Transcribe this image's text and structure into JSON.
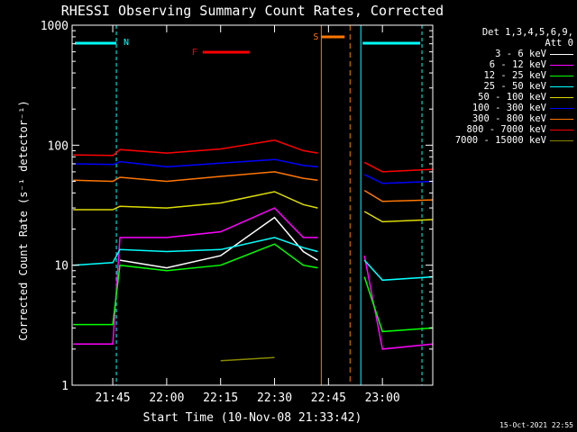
{
  "chart_data": {
    "type": "line",
    "title": "RHESSI Observing Summary Count Rates, Corrected",
    "xlabel": "Start Time (10-Nov-08 21:33:42)",
    "ylabel": "Corrected Count Rate (s⁻¹ detector⁻¹)",
    "y_scale": "log",
    "ylim": [
      1,
      1000
    ],
    "xlim": [
      "21:33:42",
      "23:14:00"
    ],
    "x_ticks": [
      "21:45",
      "22:00",
      "22:15",
      "22:30",
      "22:45",
      "23:00"
    ],
    "y_ticks": [
      "1",
      "10",
      "100",
      "1000"
    ],
    "grid": false,
    "x": [
      "21:34",
      "21:45",
      "21:47",
      "22:00",
      "22:15",
      "22:30",
      "22:38",
      "22:42",
      "22:43",
      "22:50",
      "22:55",
      "23:00",
      "23:14"
    ],
    "series": [
      {
        "name": "3 - 6 keV",
        "color": "#ffffff",
        "values": [
          null,
          null,
          11,
          9.5,
          12,
          25,
          13,
          11,
          null,
          null,
          9,
          null,
          null
        ]
      },
      {
        "name": "6 - 12 keV",
        "color": "#ff00ff",
        "values": [
          2.2,
          2.2,
          17,
          17,
          19,
          30,
          17,
          17,
          null,
          null,
          12,
          2,
          2.2
        ]
      },
      {
        "name": "12 - 25 keV",
        "color": "#00ff00",
        "values": [
          3.2,
          3.2,
          10,
          9,
          10,
          15,
          10,
          9.5,
          null,
          null,
          8,
          2.8,
          3
        ]
      },
      {
        "name": "25 - 50 keV",
        "color": "#00ffff",
        "values": [
          10,
          10.5,
          13.5,
          13,
          13.5,
          17,
          14,
          13,
          null,
          null,
          11,
          7.5,
          8
        ]
      },
      {
        "name": "50 - 100 keV",
        "color": "#dddd00",
        "values": [
          29,
          29,
          31,
          30,
          33,
          41,
          32,
          30,
          null,
          null,
          28,
          23,
          24
        ]
      },
      {
        "name": "100 - 300 keV",
        "color": "#0000ff",
        "values": [
          70,
          69,
          73,
          66,
          71,
          76,
          68,
          66,
          null,
          null,
          57,
          48,
          50
        ]
      },
      {
        "name": "300 - 800 keV",
        "color": "#ff7700",
        "values": [
          51,
          50,
          54,
          50,
          55,
          60,
          53,
          51,
          null,
          null,
          42,
          34,
          35
        ]
      },
      {
        "name": "800 - 7000 keV",
        "color": "#ff0000",
        "values": [
          83,
          82,
          92,
          86,
          93,
          110,
          90,
          86,
          null,
          null,
          72,
          60,
          63
        ]
      },
      {
        "name": "7000 - 15000 keV",
        "color": "#888800",
        "values": [
          null,
          null,
          null,
          null,
          1.6,
          1.7,
          null,
          null,
          null,
          null,
          null,
          null,
          null
        ]
      }
    ],
    "annotations": [
      {
        "label": "N",
        "color": "#00ffff"
      },
      {
        "label": "F",
        "color": "#ff0000"
      },
      {
        "label": "S",
        "color": "#ff7700"
      }
    ],
    "legend": {
      "position": "right",
      "header": [
        "Det 1,3,4,5,6,9,",
        "Att 0"
      ]
    }
  },
  "footer": {
    "timestamp": "15-Oct-2021 22:55"
  },
  "colors": {
    "background": "#000000",
    "axes": "#ffffff"
  }
}
